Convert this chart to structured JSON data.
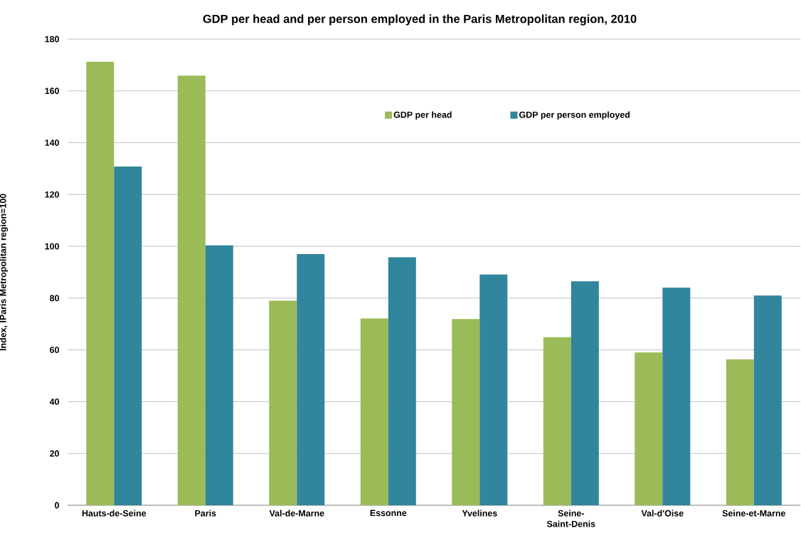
{
  "chart_data": {
    "type": "bar",
    "title": "GDP per head and per person employed in the Paris Metropolitan region, 2010",
    "ylabel": "Index, IParis Metropolitan region=100",
    "categories": [
      "Hauts-de-Seine",
      "Paris",
      "Val-de-Marne",
      "Essonne",
      "Yvelines",
      "Seine-Saint-Denis",
      "Val-d'Oise",
      "Seine-et-Marne"
    ],
    "series": [
      {
        "name": "GDP per head",
        "color": "#9bbb59",
        "values": [
          171.3,
          165.9,
          79,
          72.1,
          71.9,
          64.9,
          59,
          56.3
        ]
      },
      {
        "name": "GDP per person employed",
        "color": "#31859c",
        "values": [
          130.8,
          100.4,
          97,
          95.8,
          89.1,
          86.5,
          84,
          81
        ]
      }
    ],
    "ylim": [
      0,
      180
    ],
    "yticks": [
      0,
      20,
      40,
      60,
      80,
      100,
      120,
      140,
      160,
      180
    ],
    "grid": "y",
    "legend": "top right"
  }
}
